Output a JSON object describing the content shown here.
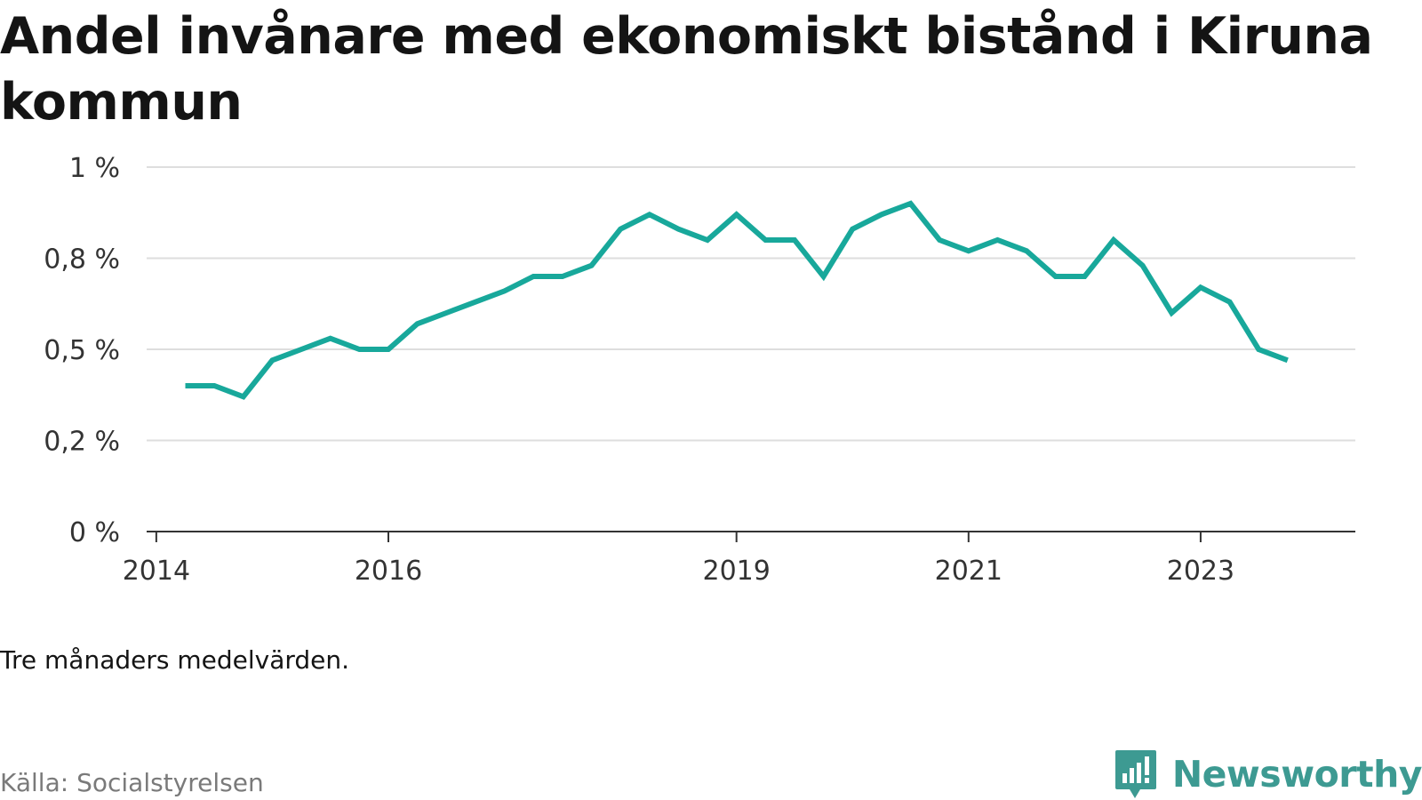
{
  "title": "Andel invånare med ekonomiskt bistånd i Kiruna kommun",
  "note": "Tre månaders medelvärden.",
  "source": "Källa: Socialstyrelsen",
  "brand": {
    "name": "Newsworthy",
    "logo_icon": "newsworthy-chart-bubble-icon"
  },
  "chart_data": {
    "type": "line",
    "title": "Andel invånare med ekonomiskt bistånd i Kiruna kommun",
    "xlabel": "",
    "ylabel": "",
    "x_tick_labels": [
      "2014",
      "2016",
      "2019",
      "2021",
      "2023"
    ],
    "y_tick_labels": [
      "0 %",
      "0,2 %",
      "0,5 %",
      "0,8 %",
      "1 %"
    ],
    "y_tick_values": [
      0,
      0.25,
      0.5,
      0.75,
      1.0
    ],
    "ylim": [
      0,
      1.0
    ],
    "xlim": [
      "2014-01",
      "2024-06"
    ],
    "grid": true,
    "legend": "none",
    "color": "#18a89b",
    "series": [
      {
        "x": [
          "2014-05",
          "2014-08",
          "2014-11",
          "2015-02",
          "2015-05",
          "2015-08",
          "2015-11",
          "2016-02",
          "2016-05",
          "2016-08",
          "2016-11",
          "2017-02",
          "2017-05",
          "2017-08",
          "2017-11",
          "2018-02",
          "2018-05",
          "2018-08",
          "2018-11",
          "2019-02",
          "2019-05",
          "2019-08",
          "2019-11",
          "2020-02",
          "2020-05",
          "2020-08",
          "2020-11",
          "2021-02",
          "2021-05",
          "2021-08",
          "2021-11",
          "2022-02",
          "2022-05",
          "2022-08",
          "2022-11",
          "2023-02",
          "2023-05",
          "2023-08",
          "2023-11"
        ],
        "values": [
          0.4,
          0.4,
          0.37,
          0.47,
          0.5,
          0.53,
          0.5,
          0.5,
          0.57,
          0.6,
          0.63,
          0.66,
          0.7,
          0.7,
          0.73,
          0.83,
          0.87,
          0.83,
          0.8,
          0.87,
          0.8,
          0.8,
          0.7,
          0.83,
          0.87,
          0.9,
          0.8,
          0.77,
          0.8,
          0.77,
          0.7,
          0.7,
          0.8,
          0.73,
          0.6,
          0.67,
          0.63,
          0.5,
          0.47
        ]
      }
    ]
  }
}
